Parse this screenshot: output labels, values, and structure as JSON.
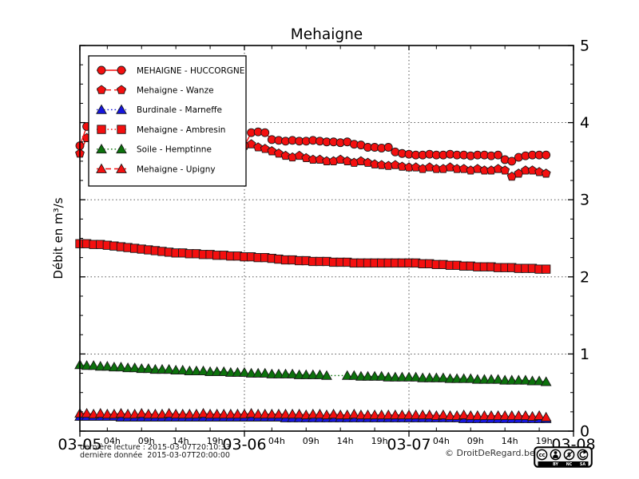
{
  "title": "Mehaigne",
  "footer": {
    "line1": "dernière lecture : 2015-03-07T20:10:33",
    "line2": "dernière donnée  2015-03-07T20:00:00",
    "copyright": "© DroitDeRegard.be",
    "license_labels": [
      "BY",
      "NC",
      "SA"
    ]
  },
  "chart_data": {
    "type": "line",
    "title": "Mehaigne",
    "xlabel": "",
    "ylabel": "Débit en m³/s",
    "ylim": [
      0,
      5
    ],
    "xlim_hours": [
      0,
      72
    ],
    "grid": true,
    "legend_position": "upper-left",
    "y_ticks": [
      0,
      1,
      2,
      3,
      4,
      5
    ],
    "y_minor_step": 0.25,
    "x_major_ticks": [
      {
        "hour": 0,
        "label": "03-05"
      },
      {
        "hour": 24,
        "label": "03-06"
      },
      {
        "hour": 48,
        "label": "03-07"
      },
      {
        "hour": 72,
        "label": "03-08"
      }
    ],
    "x_minor_ticks": [
      {
        "hour": 4,
        "label": "04h"
      },
      {
        "hour": 9,
        "label": "09h"
      },
      {
        "hour": 14,
        "label": "14h"
      },
      {
        "hour": 19,
        "label": "19h"
      },
      {
        "hour": 28,
        "label": "04h"
      },
      {
        "hour": 33,
        "label": "09h"
      },
      {
        "hour": 38,
        "label": "14h"
      },
      {
        "hour": 43,
        "label": "19h"
      },
      {
        "hour": 52,
        "label": "04h"
      },
      {
        "hour": 57,
        "label": "09h"
      },
      {
        "hour": 62,
        "label": "14h"
      },
      {
        "hour": 67,
        "label": "19h"
      }
    ],
    "sample_interval_hours": 1,
    "series": [
      {
        "id": "huccorgne",
        "label": "MEHAIGNE - HUCCORGNE",
        "color": "#f40f0f",
        "line": "solid",
        "marker": "circle",
        "values": [
          3.7,
          3.95,
          4.12,
          4.16,
          4.08,
          4.02,
          3.97,
          3.93,
          3.9,
          3.88,
          3.86,
          3.84,
          3.82,
          3.8,
          3.78,
          3.76,
          3.74,
          3.72,
          3.7,
          3.68,
          3.66,
          3.64,
          3.62,
          3.6,
          3.7,
          3.87,
          3.88,
          3.87,
          3.78,
          3.77,
          3.76,
          3.77,
          3.76,
          3.76,
          3.77,
          3.76,
          3.75,
          3.75,
          3.74,
          3.75,
          3.72,
          3.71,
          3.68,
          3.68,
          3.67,
          3.68,
          3.62,
          3.6,
          3.59,
          3.58,
          3.58,
          3.59,
          3.58,
          3.58,
          3.59,
          3.58,
          3.58,
          3.57,
          3.58,
          3.58,
          3.57,
          3.58,
          3.52,
          3.5,
          3.55,
          3.57,
          3.58,
          3.58,
          3.58
        ]
      },
      {
        "id": "wanze",
        "label": "Mehaigne - Wanze",
        "color": "#f40f0f",
        "line": "dashed",
        "marker": "pentagon",
        "values": [
          3.6,
          3.8,
          3.95,
          3.99,
          3.93,
          3.88,
          3.84,
          3.81,
          3.79,
          3.77,
          3.76,
          3.75,
          3.74,
          3.73,
          3.72,
          3.71,
          3.7,
          3.69,
          3.68,
          3.67,
          3.66,
          3.65,
          3.64,
          3.65,
          3.7,
          3.72,
          3.68,
          3.66,
          3.63,
          3.6,
          3.57,
          3.55,
          3.57,
          3.54,
          3.52,
          3.52,
          3.5,
          3.5,
          3.52,
          3.5,
          3.48,
          3.5,
          3.48,
          3.46,
          3.45,
          3.44,
          3.45,
          3.43,
          3.42,
          3.42,
          3.4,
          3.42,
          3.4,
          3.4,
          3.42,
          3.4,
          3.4,
          3.38,
          3.4,
          3.38,
          3.38,
          3.4,
          3.38,
          3.3,
          3.34,
          3.38,
          3.38,
          3.36,
          3.34
        ]
      },
      {
        "id": "marneffe",
        "label": "Burdinale - Marneffe",
        "color": "#1515dd",
        "line": "dotted",
        "marker": "triangle",
        "values": [
          0.19,
          0.19,
          0.19,
          0.19,
          0.19,
          0.19,
          0.18,
          0.18,
          0.18,
          0.18,
          0.18,
          0.18,
          0.18,
          0.18,
          0.18,
          0.18,
          0.18,
          0.18,
          0.18,
          0.18,
          0.18,
          0.18,
          0.18,
          0.18,
          0.18,
          0.18,
          0.18,
          0.18,
          0.18,
          0.18,
          0.17,
          0.17,
          0.17,
          0.17,
          0.17,
          0.17,
          0.17,
          0.17,
          0.17,
          0.17,
          0.17,
          0.17,
          0.17,
          0.17,
          0.17,
          0.17,
          0.17,
          0.17,
          0.17,
          0.17,
          0.17,
          0.17,
          0.17,
          0.17,
          0.17,
          0.17,
          0.16,
          0.16,
          0.16,
          0.16,
          0.16,
          0.16,
          0.16,
          0.16,
          0.16,
          0.16,
          0.16,
          0.16,
          0.16
        ]
      },
      {
        "id": "ambresin",
        "label": "Mehaigne - Ambresin",
        "color": "#f40f0f",
        "line": "dotted",
        "marker": "square",
        "values": [
          2.43,
          2.43,
          2.42,
          2.42,
          2.41,
          2.4,
          2.39,
          2.38,
          2.37,
          2.36,
          2.35,
          2.34,
          2.33,
          2.32,
          2.31,
          2.31,
          2.3,
          2.3,
          2.29,
          2.29,
          2.28,
          2.28,
          2.27,
          2.27,
          2.26,
          2.26,
          2.25,
          2.25,
          2.24,
          2.23,
          2.22,
          2.22,
          2.21,
          2.21,
          2.2,
          2.2,
          2.2,
          2.19,
          2.19,
          2.19,
          2.18,
          2.18,
          2.18,
          2.18,
          2.18,
          2.18,
          2.18,
          2.18,
          2.18,
          2.18,
          2.17,
          2.17,
          2.16,
          2.16,
          2.15,
          2.15,
          2.14,
          2.14,
          2.13,
          2.13,
          2.13,
          2.12,
          2.12,
          2.12,
          2.11,
          2.11,
          2.11,
          2.1,
          2.1
        ]
      },
      {
        "id": "hemptinne",
        "label": "Soile - Hemptinne",
        "color": "#0c720c",
        "line": "dotted",
        "marker": "triangle",
        "values": [
          0.86,
          0.85,
          0.85,
          0.84,
          0.84,
          0.83,
          0.83,
          0.82,
          0.82,
          0.81,
          0.81,
          0.8,
          0.8,
          0.8,
          0.79,
          0.79,
          0.78,
          0.78,
          0.78,
          0.77,
          0.77,
          0.77,
          0.76,
          0.76,
          0.76,
          0.75,
          0.75,
          0.75,
          0.74,
          0.74,
          0.74,
          0.74,
          0.73,
          0.73,
          0.73,
          0.73,
          0.72,
          null,
          null,
          0.72,
          0.72,
          0.71,
          0.71,
          0.71,
          0.71,
          0.7,
          0.7,
          0.7,
          0.7,
          0.7,
          0.69,
          0.69,
          0.69,
          0.69,
          0.68,
          0.68,
          0.68,
          0.68,
          0.67,
          0.67,
          0.67,
          0.67,
          0.66,
          0.66,
          0.66,
          0.66,
          0.65,
          0.65,
          0.64
        ]
      },
      {
        "id": "upigny",
        "label": "Mehaigne - Upigny",
        "color": "#f40f0f",
        "line": "dashed",
        "marker": "triangle",
        "values": [
          0.23,
          0.23,
          0.22,
          0.23,
          0.22,
          0.22,
          0.23,
          0.22,
          0.22,
          0.23,
          0.22,
          0.22,
          0.22,
          0.23,
          0.22,
          0.22,
          0.22,
          0.22,
          0.23,
          0.22,
          0.22,
          0.22,
          0.22,
          0.22,
          0.22,
          0.23,
          0.22,
          0.22,
          0.22,
          0.22,
          0.22,
          0.22,
          0.22,
          0.21,
          0.22,
          0.22,
          0.21,
          0.22,
          0.21,
          0.21,
          0.22,
          0.21,
          0.21,
          0.21,
          0.21,
          0.21,
          0.21,
          0.21,
          0.21,
          0.21,
          0.21,
          0.21,
          0.2,
          0.21,
          0.2,
          0.2,
          0.21,
          0.2,
          0.2,
          0.2,
          0.2,
          0.2,
          0.2,
          0.2,
          0.2,
          0.2,
          0.19,
          0.2,
          0.18
        ]
      }
    ]
  }
}
